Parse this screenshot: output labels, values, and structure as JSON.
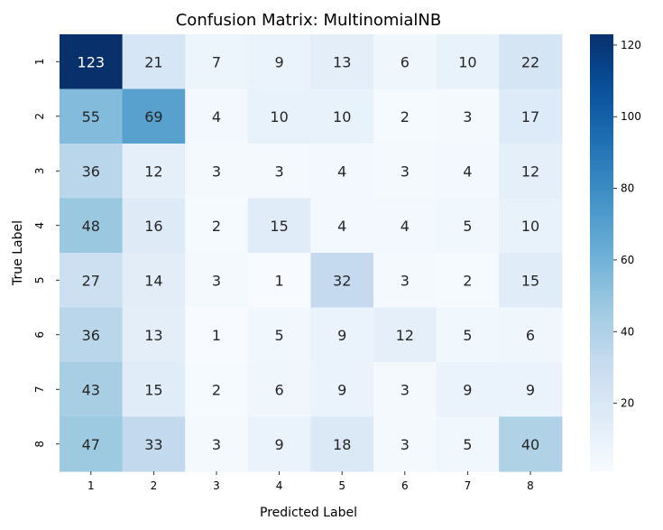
{
  "chart_data": {
    "type": "heatmap",
    "title": "Confusion Matrix: MultinomialNB",
    "xlabel": "Predicted Label",
    "ylabel": "True Label",
    "x_categories": [
      "1",
      "2",
      "3",
      "4",
      "5",
      "6",
      "7",
      "8"
    ],
    "y_categories": [
      "1",
      "2",
      "3",
      "4",
      "5",
      "6",
      "7",
      "8"
    ],
    "values": [
      [
        123,
        21,
        7,
        9,
        13,
        6,
        10,
        22
      ],
      [
        55,
        69,
        4,
        10,
        10,
        2,
        3,
        17
      ],
      [
        36,
        12,
        3,
        3,
        4,
        3,
        4,
        12
      ],
      [
        48,
        16,
        2,
        15,
        4,
        4,
        5,
        10
      ],
      [
        27,
        14,
        3,
        1,
        32,
        3,
        2,
        15
      ],
      [
        36,
        13,
        1,
        5,
        9,
        12,
        5,
        6
      ],
      [
        43,
        15,
        2,
        6,
        9,
        3,
        9,
        9
      ],
      [
        47,
        33,
        3,
        9,
        18,
        3,
        5,
        40
      ]
    ],
    "colormap": "Blues",
    "vmin": 1,
    "vmax": 123,
    "colorbar_ticks": [
      20,
      40,
      60,
      80,
      100,
      120
    ],
    "colorbar_tick_labels": [
      "20",
      "40",
      "60",
      "80",
      "100",
      "120"
    ]
  }
}
